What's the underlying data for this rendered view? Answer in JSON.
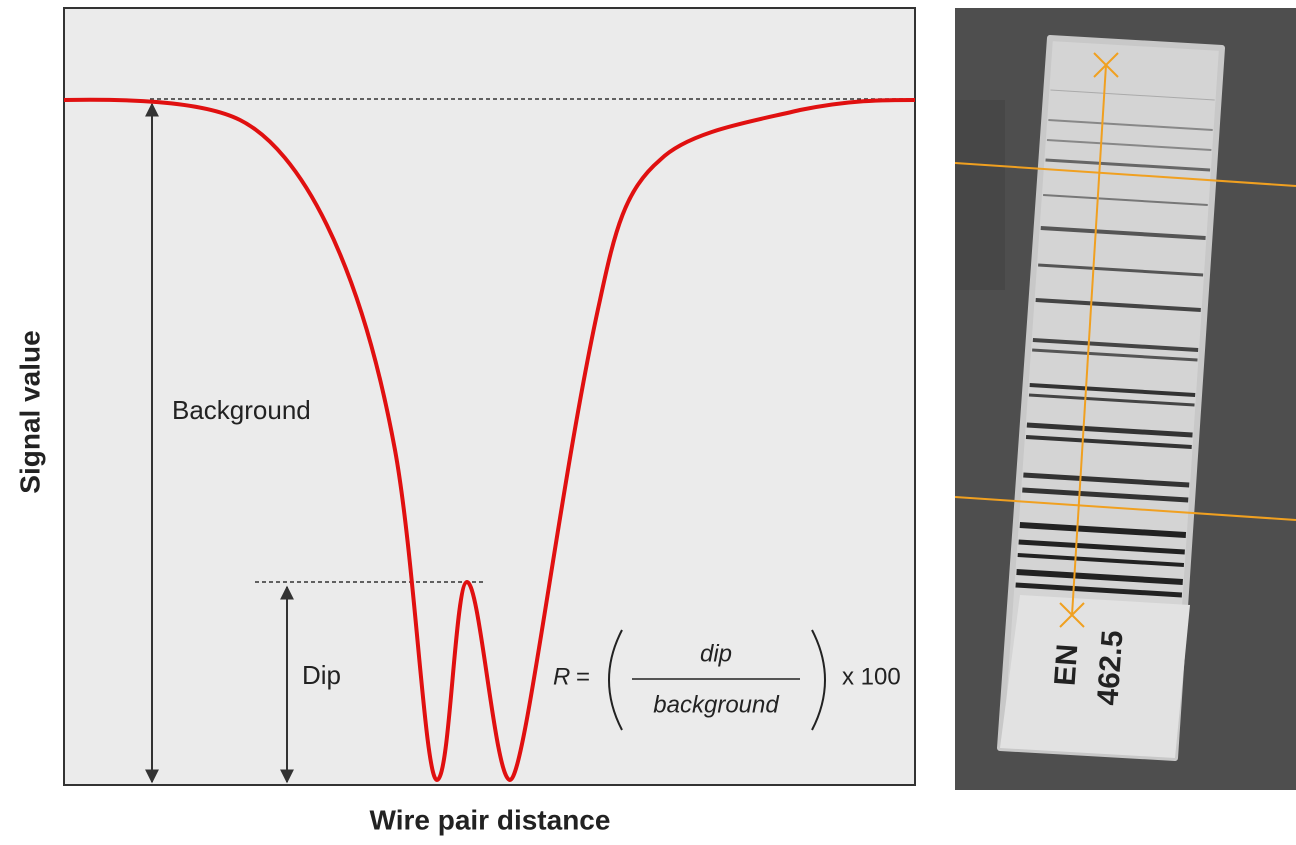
{
  "diagram": {
    "y_axis_label": "Signal value",
    "x_axis_label": "Wire pair distance",
    "background_label": "Background",
    "dip_label": "Dip",
    "formula": {
      "lhs": "R",
      "equals": "=",
      "numerator": "dip",
      "denominator": "background",
      "multiplier": "x 100"
    }
  },
  "image": {
    "labels": [
      "EN",
      "462.5"
    ]
  }
}
